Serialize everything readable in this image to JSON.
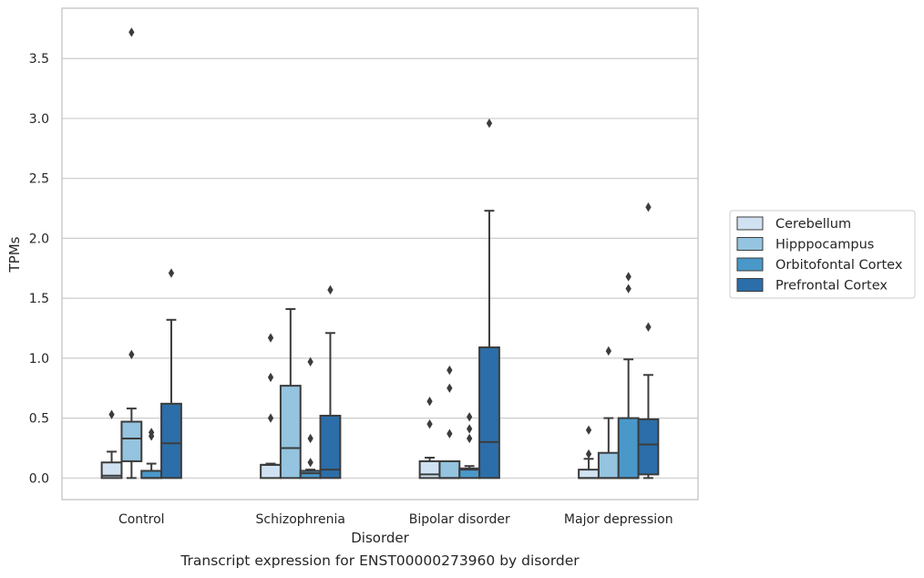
{
  "caption": "Transcript expression for ENST00000273960 by disorder",
  "chart_data": {
    "type": "box",
    "title": "",
    "xlabel": "Disorder",
    "ylabel": "TPMs",
    "ylim": [
      -0.18,
      3.92
    ],
    "yticks": [
      0.0,
      0.5,
      1.0,
      1.5,
      2.0,
      2.5,
      3.0,
      3.5
    ],
    "ytick_labels": [
      "0.0",
      "0.5",
      "1.0",
      "1.5",
      "2.0",
      "2.5",
      "3.0",
      "3.5"
    ],
    "grid": "horizontal",
    "legend_position": "right",
    "categories": [
      "Control",
      "Schizophrenia",
      "Bipolar disorder",
      "Major depression"
    ],
    "series": [
      {
        "name": "Cerebellum",
        "color": "#d0e1f2",
        "boxes": [
          {
            "whislo": 0.0,
            "q1": 0.0,
            "med": 0.02,
            "q3": 0.13,
            "whishi": 0.22,
            "fliers": [
              0.53
            ]
          },
          {
            "whislo": 0.0,
            "q1": 0.0,
            "med": 0.11,
            "q3": 0.11,
            "whishi": 0.12,
            "fliers": [
              0.5,
              0.84,
              1.17
            ]
          },
          {
            "whislo": 0.0,
            "q1": 0.0,
            "med": 0.03,
            "q3": 0.14,
            "whishi": 0.17,
            "fliers": [
              0.45,
              0.64
            ]
          },
          {
            "whislo": 0.0,
            "q1": 0.0,
            "med": 0.0,
            "q3": 0.07,
            "whishi": 0.16,
            "fliers": [
              0.2,
              0.4
            ]
          }
        ]
      },
      {
        "name": "Hipppocampus",
        "color": "#94c4df",
        "boxes": [
          {
            "whislo": 0.0,
            "q1": 0.14,
            "med": 0.33,
            "q3": 0.47,
            "whishi": 0.58,
            "fliers": [
              1.03,
              3.72
            ]
          },
          {
            "whislo": 0.0,
            "q1": 0.0,
            "med": 0.25,
            "q3": 0.77,
            "whishi": 1.41,
            "fliers": []
          },
          {
            "whislo": 0.0,
            "q1": 0.0,
            "med": 0.0,
            "q3": 0.14,
            "whishi": 0.14,
            "fliers": [
              0.37,
              0.75,
              0.9
            ]
          },
          {
            "whislo": 0.0,
            "q1": 0.0,
            "med": 0.0,
            "q3": 0.21,
            "whishi": 0.5,
            "fliers": [
              1.06
            ]
          }
        ]
      },
      {
        "name": "Orbitofontal Cortex",
        "color": "#4a98c9",
        "boxes": [
          {
            "whislo": 0.0,
            "q1": 0.0,
            "med": 0.0,
            "q3": 0.06,
            "whishi": 0.12,
            "fliers": [
              0.35,
              0.38
            ]
          },
          {
            "whislo": 0.0,
            "q1": 0.0,
            "med": 0.04,
            "q3": 0.06,
            "whishi": 0.07,
            "fliers": [
              0.13,
              0.33,
              0.97
            ]
          },
          {
            "whislo": 0.0,
            "q1": 0.0,
            "med": 0.07,
            "q3": 0.08,
            "whishi": 0.1,
            "fliers": [
              0.33,
              0.41,
              0.51
            ]
          },
          {
            "whislo": 0.0,
            "q1": 0.0,
            "med": 0.0,
            "q3": 0.5,
            "whishi": 0.99,
            "fliers": [
              1.58,
              1.68
            ]
          }
        ]
      },
      {
        "name": "Prefrontal Cortex",
        "color": "#2c6ea9",
        "boxes": [
          {
            "whislo": 0.0,
            "q1": 0.0,
            "med": 0.29,
            "q3": 0.62,
            "whishi": 1.32,
            "fliers": [
              1.71
            ]
          },
          {
            "whislo": 0.0,
            "q1": 0.0,
            "med": 0.07,
            "q3": 0.52,
            "whishi": 1.21,
            "fliers": [
              1.57
            ]
          },
          {
            "whislo": 0.0,
            "q1": 0.0,
            "med": 0.3,
            "q3": 1.09,
            "whishi": 2.23,
            "fliers": [
              2.96
            ]
          },
          {
            "whislo": 0.0,
            "q1": 0.03,
            "med": 0.28,
            "q3": 0.49,
            "whishi": 0.86,
            "fliers": [
              1.26,
              2.26
            ]
          }
        ]
      }
    ]
  },
  "colors": {
    "edge": "#3c3c3c",
    "grid": "#cccccc",
    "frame": "#cccccc"
  }
}
